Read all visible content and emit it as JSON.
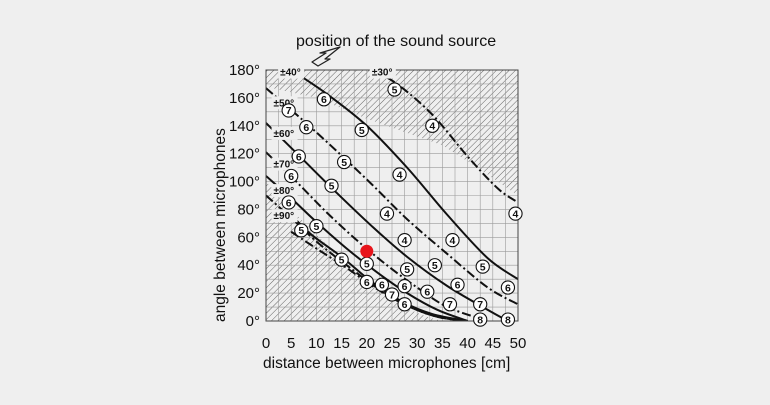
{
  "chart_data": {
    "type": "line",
    "title": "position of the sound source",
    "xlabel": "distance between microphones [cm]",
    "ylabel": "angle between microphones",
    "xlim": [
      0,
      50
    ],
    "ylim": [
      0,
      180
    ],
    "x_ticks": [
      "0",
      "5",
      "10",
      "15",
      "20",
      "25",
      "30",
      "35",
      "40",
      "45",
      "50"
    ],
    "y_ticks": [
      "0°",
      "20°",
      "40°",
      "60°",
      "80°",
      "100°",
      "120°",
      "140°",
      "160°",
      "180°"
    ],
    "grid": true,
    "colors": {
      "background": "#efefef",
      "grid": "#9a9a9a",
      "hatch": "#555555",
      "marker": "#e8141b",
      "line": "#111111"
    },
    "hatched_regions": [
      {
        "name": "upper",
        "points": [
          [
            0,
            180
          ],
          [
            50,
            180
          ],
          [
            50,
            90
          ],
          [
            42,
            110
          ],
          [
            35,
            126
          ],
          [
            20,
            145
          ],
          [
            10,
            160
          ],
          [
            0,
            168
          ]
        ]
      },
      {
        "name": "lower",
        "points": [
          [
            0,
            100
          ],
          [
            5,
            80
          ],
          [
            10,
            62
          ],
          [
            14,
            48
          ],
          [
            18,
            35
          ],
          [
            22,
            24
          ],
          [
            25,
            16
          ],
          [
            28,
            9
          ],
          [
            32,
            3
          ],
          [
            35,
            0
          ],
          [
            0,
            0
          ]
        ]
      }
    ],
    "series": [
      {
        "name": "±30°",
        "style": "dashdot",
        "points": [
          [
            21,
            180
          ],
          [
            26,
            170
          ],
          [
            33,
            148
          ],
          [
            40,
            118
          ],
          [
            46,
            95
          ],
          [
            50,
            85
          ]
        ]
      },
      {
        "name": "±40°",
        "style": "solid",
        "points": [
          [
            5,
            180
          ],
          [
            12,
            163
          ],
          [
            20,
            140
          ],
          [
            28,
            110
          ],
          [
            36,
            76
          ],
          [
            44,
            45
          ],
          [
            50,
            30
          ]
        ]
      },
      {
        "name": "±50°",
        "style": "dashdot",
        "points": [
          [
            0,
            167
          ],
          [
            7,
            145
          ],
          [
            14,
            122
          ],
          [
            21,
            98
          ],
          [
            28,
            73
          ],
          [
            36,
            48
          ],
          [
            44,
            24
          ],
          [
            50,
            12
          ]
        ]
      },
      {
        "name": "±60°",
        "style": "solid",
        "points": [
          [
            0,
            142
          ],
          [
            7,
            117
          ],
          [
            14,
            92
          ],
          [
            21,
            68
          ],
          [
            28,
            46
          ],
          [
            36,
            25
          ],
          [
            44,
            8
          ],
          [
            48,
            0
          ]
        ]
      },
      {
        "name": "±70°",
        "style": "dashdot",
        "points": [
          [
            0,
            121
          ],
          [
            6,
            100
          ],
          [
            12,
            78
          ],
          [
            18,
            58
          ],
          [
            24,
            40
          ],
          [
            30,
            24
          ],
          [
            36,
            10
          ],
          [
            44,
            0
          ]
        ]
      },
      {
        "name": "±80°",
        "style": "solid",
        "points": [
          [
            0,
            104
          ],
          [
            5,
            88
          ],
          [
            10,
            71
          ],
          [
            16,
            52
          ],
          [
            22,
            35
          ],
          [
            28,
            20
          ],
          [
            34,
            8
          ],
          [
            40,
            0
          ]
        ]
      },
      {
        "name": "±90°",
        "style": "dashdot",
        "points": [
          [
            0,
            90
          ],
          [
            5,
            74
          ],
          [
            10,
            57
          ],
          [
            16,
            40
          ],
          [
            22,
            24
          ],
          [
            28,
            11
          ],
          [
            34,
            3
          ],
          [
            40,
            0
          ]
        ]
      },
      {
        "name": "",
        "style": "solid",
        "points": [
          [
            5,
            76
          ],
          [
            9,
            62
          ],
          [
            15,
            46
          ],
          [
            21,
            28
          ],
          [
            27,
            14
          ],
          [
            33,
            5
          ],
          [
            40,
            0
          ]
        ]
      },
      {
        "name": "",
        "style": "dashdot",
        "points": [
          [
            5,
            64
          ],
          [
            10,
            52
          ],
          [
            16,
            38
          ],
          [
            22,
            23
          ],
          [
            28,
            11
          ],
          [
            34,
            3
          ],
          [
            40,
            0
          ]
        ]
      }
    ],
    "angle_labels": [
      {
        "label": "±40°",
        "x": 2.8,
        "y": 176
      },
      {
        "label": "±30°",
        "x": 21,
        "y": 176
      },
      {
        "label": "±50°",
        "x": 1.5,
        "y": 154
      },
      {
        "label": "±60°",
        "x": 1.5,
        "y": 132
      },
      {
        "label": "±70°",
        "x": 1.5,
        "y": 110
      },
      {
        "label": "±80°",
        "x": 1.5,
        "y": 91
      },
      {
        "label": "±90°",
        "x": 1.5,
        "y": 73
      }
    ],
    "circled_markers": [
      {
        "label": "5",
        "x": 25.5,
        "y": 166
      },
      {
        "label": "6",
        "x": 11.5,
        "y": 159
      },
      {
        "label": "4",
        "x": 33,
        "y": 140
      },
      {
        "label": "5",
        "x": 19,
        "y": 137
      },
      {
        "label": "7",
        "x": 4.5,
        "y": 151
      },
      {
        "label": "6",
        "x": 8,
        "y": 139
      },
      {
        "label": "6",
        "x": 6.5,
        "y": 118
      },
      {
        "label": "5",
        "x": 15.5,
        "y": 114
      },
      {
        "label": "4",
        "x": 26.5,
        "y": 105
      },
      {
        "label": "4",
        "x": 49.5,
        "y": 77
      },
      {
        "label": "6",
        "x": 5,
        "y": 104
      },
      {
        "label": "5",
        "x": 13,
        "y": 97
      },
      {
        "label": "6",
        "x": 4.5,
        "y": 85
      },
      {
        "label": "4",
        "x": 24,
        "y": 77
      },
      {
        "label": "5",
        "x": 7,
        "y": 65
      },
      {
        "label": "5",
        "x": 10,
        "y": 68
      },
      {
        "label": "4",
        "x": 27.5,
        "y": 58
      },
      {
        "label": "4",
        "x": 37,
        "y": 58
      },
      {
        "label": "5",
        "x": 15,
        "y": 44
      },
      {
        "label": "5",
        "x": 20,
        "y": 41
      },
      {
        "label": "5",
        "x": 28,
        "y": 37
      },
      {
        "label": "5",
        "x": 33.5,
        "y": 40
      },
      {
        "label": "5",
        "x": 43,
        "y": 39
      },
      {
        "label": "6",
        "x": 20,
        "y": 28
      },
      {
        "label": "6",
        "x": 23,
        "y": 26
      },
      {
        "label": "6",
        "x": 27.5,
        "y": 25
      },
      {
        "label": "6",
        "x": 38,
        "y": 26
      },
      {
        "label": "6",
        "x": 48,
        "y": 24
      },
      {
        "label": "7",
        "x": 25,
        "y": 19
      },
      {
        "label": "6",
        "x": 32,
        "y": 21
      },
      {
        "label": "6",
        "x": 27.5,
        "y": 12
      },
      {
        "label": "7",
        "x": 36.5,
        "y": 12
      },
      {
        "label": "7",
        "x": 42.5,
        "y": 12
      },
      {
        "label": "8",
        "x": 42.5,
        "y": 1
      },
      {
        "label": "8",
        "x": 48,
        "y": 1
      }
    ],
    "highlight_point": {
      "x": 20,
      "y": 50
    }
  }
}
